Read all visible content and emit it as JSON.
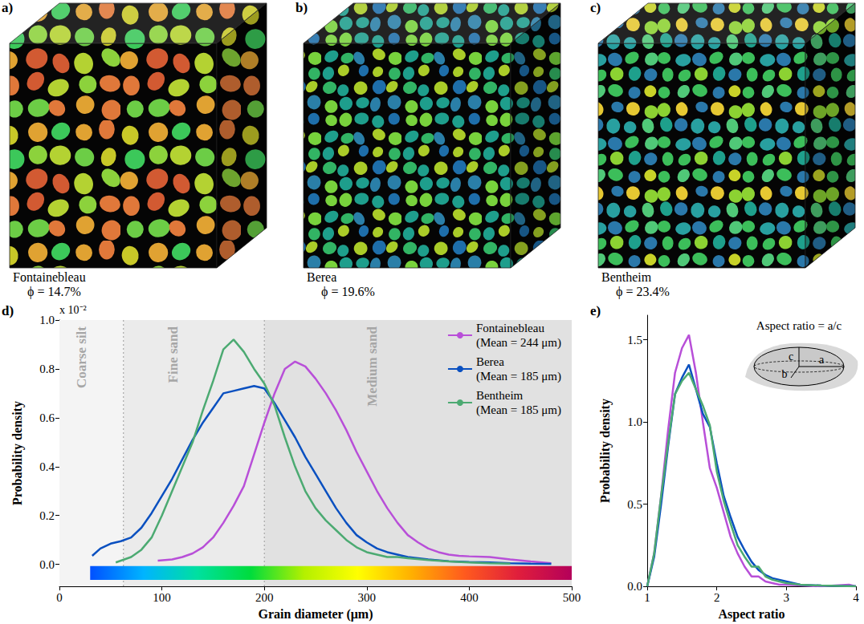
{
  "samples": [
    {
      "panel": "a)",
      "name": "Fontainebleau",
      "porosity": "ϕ = 14.7%"
    },
    {
      "panel": "b)",
      "name": "Berea",
      "porosity": "ϕ = 19.6%"
    },
    {
      "panel": "c)",
      "name": "Bentheim",
      "porosity": "ϕ = 23.4%"
    }
  ],
  "chart_data": [
    {
      "type": "line",
      "panel": "d)",
      "x_label": "Grain diameter (μm)",
      "y_label": "Probability density",
      "y_multiplier": "x 10⁻²",
      "xlim": [
        0,
        500
      ],
      "xticks": [
        0,
        100,
        200,
        300,
        400,
        500
      ],
      "ylim": [
        -0.09,
        1.0
      ],
      "yticks": [
        {
          "value": 0,
          "label": "0.0"
        },
        0.2,
        0.4,
        0.6,
        0.8,
        {
          "value": 1,
          "label": "1.0"
        }
      ],
      "grid": false,
      "legend": "upper right",
      "regions": [
        {
          "label": "Coarse silt",
          "from": 0,
          "to": 62.5,
          "color": "#f4f4f4"
        },
        {
          "label": "Fine sand",
          "from": 62.5,
          "to": 200,
          "color": "#ebebeb"
        },
        {
          "label": "Medium sand",
          "from": 200,
          "to": 500,
          "color": "#e1e1e1"
        }
      ],
      "color_bar": {
        "range": [
          30,
          500
        ],
        "colors": [
          "#0050ff",
          "#00b4ff",
          "#00e0a0",
          "#00dc3c",
          "#b4f000",
          "#ffff00",
          "#ffb000",
          "#ff5a1e",
          "#e01e3c",
          "#b4005a"
        ]
      },
      "series": [
        {
          "name": "Fontainebleau",
          "mean_label": "(Mean = 244 μm)",
          "color": "#b84fd8",
          "x": [
            96,
            110,
            120,
            130,
            140,
            150,
            160,
            170,
            180,
            190,
            200,
            210,
            220,
            230,
            240,
            250,
            260,
            270,
            280,
            290,
            300,
            310,
            320,
            330,
            340,
            350,
            360,
            370,
            380,
            390,
            400,
            420,
            440,
            460,
            480
          ],
          "values": [
            0.015,
            0.02,
            0.03,
            0.045,
            0.07,
            0.11,
            0.17,
            0.24,
            0.32,
            0.45,
            0.58,
            0.7,
            0.8,
            0.83,
            0.81,
            0.76,
            0.7,
            0.63,
            0.55,
            0.46,
            0.38,
            0.3,
            0.23,
            0.17,
            0.12,
            0.09,
            0.065,
            0.05,
            0.04,
            0.035,
            0.033,
            0.03,
            0.02,
            0.012,
            0.005
          ]
        },
        {
          "name": "Berea",
          "mean_label": "(Mean = 185 μm)",
          "color": "#0a50c0",
          "x": [
            32,
            40,
            50,
            60,
            70,
            80,
            90,
            100,
            110,
            120,
            130,
            140,
            150,
            160,
            170,
            180,
            190,
            200,
            210,
            220,
            230,
            240,
            250,
            260,
            270,
            280,
            290,
            300,
            310,
            320,
            330,
            340,
            350,
            360,
            380,
            400,
            420,
            440,
            460,
            480
          ],
          "values": [
            0.035,
            0.065,
            0.085,
            0.095,
            0.11,
            0.15,
            0.21,
            0.28,
            0.35,
            0.43,
            0.51,
            0.58,
            0.64,
            0.7,
            0.71,
            0.72,
            0.73,
            0.72,
            0.66,
            0.59,
            0.52,
            0.44,
            0.37,
            0.3,
            0.23,
            0.17,
            0.12,
            0.09,
            0.065,
            0.05,
            0.04,
            0.03,
            0.025,
            0.02,
            0.013,
            0.01,
            0.008,
            0.005,
            0.003,
            0.002
          ]
        },
        {
          "name": "Bentheim",
          "mean_label": "(Mean = 185 μm)",
          "color": "#4caa72",
          "x": [
            55,
            70,
            80,
            90,
            100,
            110,
            120,
            130,
            140,
            150,
            160,
            170,
            180,
            190,
            200,
            210,
            220,
            230,
            240,
            250,
            260,
            270,
            280,
            290,
            300,
            310,
            320,
            330,
            340,
            360,
            380,
            400,
            420,
            440
          ],
          "values": [
            0.008,
            0.03,
            0.06,
            0.11,
            0.2,
            0.3,
            0.4,
            0.5,
            0.63,
            0.75,
            0.88,
            0.92,
            0.87,
            0.8,
            0.74,
            0.65,
            0.52,
            0.4,
            0.3,
            0.23,
            0.18,
            0.14,
            0.1,
            0.07,
            0.05,
            0.04,
            0.03,
            0.03,
            0.025,
            0.018,
            0.012,
            0.008,
            0.005,
            0.003
          ]
        }
      ]
    },
    {
      "type": "line",
      "panel": "e)",
      "x_label": "Aspect ratio",
      "y_label": "Probability density",
      "xlim": [
        1,
        4
      ],
      "xticks": [
        1,
        2,
        3,
        4
      ],
      "ylim": [
        0,
        1.65
      ],
      "yticks": [
        {
          "value": 0,
          "label": "0.0"
        },
        0.5,
        {
          "value": 1,
          "label": "1.0"
        },
        1.5
      ],
      "grid": false,
      "inset": {
        "title": "Aspect ratio = a/c",
        "axis_labels": [
          "a",
          "b",
          "c"
        ]
      },
      "series": [
        {
          "name": "Fontainebleau",
          "color": "#b84fd8",
          "x": [
            1.0,
            1.1,
            1.2,
            1.3,
            1.4,
            1.5,
            1.6,
            1.7,
            1.8,
            1.9,
            2.0,
            2.1,
            2.2,
            2.3,
            2.4,
            2.5,
            2.6,
            2.7,
            2.8,
            2.9,
            3.0,
            3.5,
            3.9,
            4.0
          ],
          "values": [
            0,
            0.2,
            0.55,
            0.95,
            1.3,
            1.45,
            1.53,
            1.3,
            1.0,
            0.72,
            0.6,
            0.45,
            0.3,
            0.2,
            0.12,
            0.06,
            0.06,
            0.03,
            0.02,
            0.01,
            0.01,
            0,
            0.01,
            0
          ]
        },
        {
          "name": "Berea",
          "color": "#0a50c0",
          "x": [
            1.0,
            1.1,
            1.2,
            1.3,
            1.4,
            1.5,
            1.6,
            1.7,
            1.8,
            1.9,
            2.0,
            2.1,
            2.2,
            2.3,
            2.4,
            2.5,
            2.6,
            2.7,
            2.8,
            2.9,
            3.0,
            3.2,
            3.5,
            4.0
          ],
          "values": [
            0,
            0.18,
            0.5,
            0.85,
            1.17,
            1.27,
            1.35,
            1.2,
            1.05,
            0.97,
            0.75,
            0.55,
            0.42,
            0.3,
            0.22,
            0.15,
            0.1,
            0.07,
            0.05,
            0.04,
            0.03,
            0.01,
            0.005,
            0
          ]
        },
        {
          "name": "Bentheim",
          "color": "#4caa72",
          "x": [
            1.0,
            1.1,
            1.2,
            1.3,
            1.4,
            1.5,
            1.6,
            1.7,
            1.8,
            1.9,
            2.0,
            2.1,
            2.2,
            2.3,
            2.4,
            2.5,
            2.6,
            2.7,
            2.8,
            2.9,
            3.0,
            3.2,
            3.5,
            4.0
          ],
          "values": [
            0,
            0.2,
            0.55,
            0.87,
            1.17,
            1.25,
            1.3,
            1.2,
            1.1,
            0.98,
            0.7,
            0.52,
            0.38,
            0.25,
            0.18,
            0.12,
            0.12,
            0.06,
            0.04,
            0.03,
            0.02,
            0.01,
            0.005,
            0
          ]
        }
      ]
    }
  ]
}
